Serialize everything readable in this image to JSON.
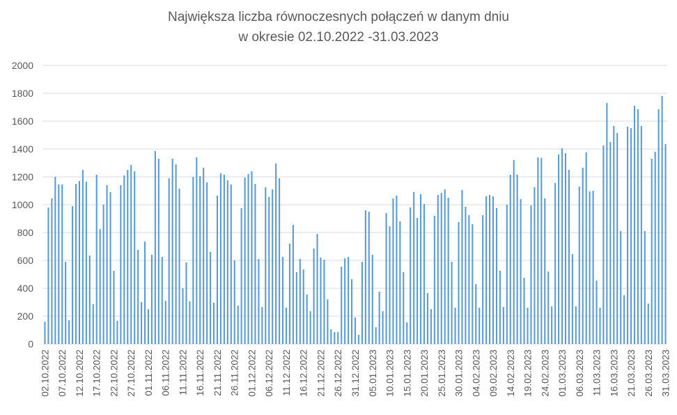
{
  "chart_data": {
    "type": "bar",
    "title": "Największa liczba równoczesnych połączeń w danym dniu",
    "subtitle": "w okresie 02.10.2022 -31.03.2023",
    "xlabel": "",
    "ylabel": "",
    "ylim": [
      0,
      2000
    ],
    "ytick_labels": [
      "0",
      "200",
      "400",
      "600",
      "800",
      "1000",
      "1200",
      "1400",
      "1600",
      "1800",
      "2000"
    ],
    "grid": true,
    "bar_color": "#5b9bd5",
    "tick_labels": [
      "02.10.2022",
      "07.10.2022",
      "12.10.2022",
      "17.10.2022",
      "22.10.2022",
      "27.10.2022",
      "01.11.2022",
      "06.11.2022",
      "11.11.2022",
      "16.11.2022",
      "21.11.2022",
      "26.11.2022",
      "01.12.2022",
      "06.12.2022",
      "11.12.2022",
      "16.12.2022",
      "21.12.2022",
      "26.12.2022",
      "31.12.2022",
      "05.01.2023",
      "10.01.2023",
      "15.01.2023",
      "20.01.2023",
      "25.01.2023",
      "30.01.2023",
      "04.02.2023",
      "09.02.2023",
      "14.02.2023",
      "19.02.2023",
      "24.02.2023",
      "01.03.2023",
      "06.03.2023",
      "11.03.2023",
      "16.03.2023",
      "21.03.2023",
      "26.03.2023",
      "31.03.2023"
    ],
    "tick_every": 5,
    "values": [
      160,
      980,
      1045,
      1200,
      1145,
      1145,
      590,
      170,
      990,
      1150,
      1170,
      1250,
      1165,
      635,
      285,
      1215,
      825,
      1000,
      1140,
      1090,
      525,
      165,
      1140,
      1210,
      1250,
      1285,
      1240,
      675,
      300,
      735,
      250,
      640,
      1385,
      1330,
      625,
      310,
      1190,
      1330,
      1290,
      1115,
      400,
      585,
      305,
      1200,
      1340,
      1205,
      1265,
      1160,
      660,
      295,
      1065,
      1225,
      1215,
      1175,
      1145,
      600,
      275,
      975,
      1195,
      1220,
      1240,
      1150,
      610,
      265,
      1125,
      1055,
      1110,
      1295,
      1190,
      625,
      260,
      720,
      855,
      515,
      610,
      535,
      355,
      235,
      685,
      790,
      620,
      605,
      320,
      105,
      85,
      85,
      555,
      615,
      625,
      465,
      190,
      65,
      590,
      960,
      950,
      640,
      120,
      375,
      235,
      940,
      845,
      1045,
      1065,
      880,
      515,
      155,
      980,
      1090,
      905,
      1075,
      1005,
      365,
      250,
      920,
      1070,
      1085,
      1110,
      1050,
      590,
      260,
      875,
      1105,
      985,
      925,
      860,
      430,
      260,
      925,
      1060,
      1070,
      1060,
      975,
      525,
      265,
      1000,
      1215,
      1320,
      1215,
      1040,
      475,
      260,
      995,
      1125,
      1340,
      1335,
      1045,
      520,
      270,
      1155,
      1360,
      1405,
      1370,
      1250,
      645,
      270,
      1130,
      1265,
      1375,
      1095,
      1100,
      455,
      260,
      1425,
      1730,
      1450,
      1565,
      1515,
      810,
      350,
      1560,
      1550,
      1710,
      1685,
      1565,
      810,
      290,
      1330,
      1380,
      1685,
      1780,
      1435
    ]
  }
}
